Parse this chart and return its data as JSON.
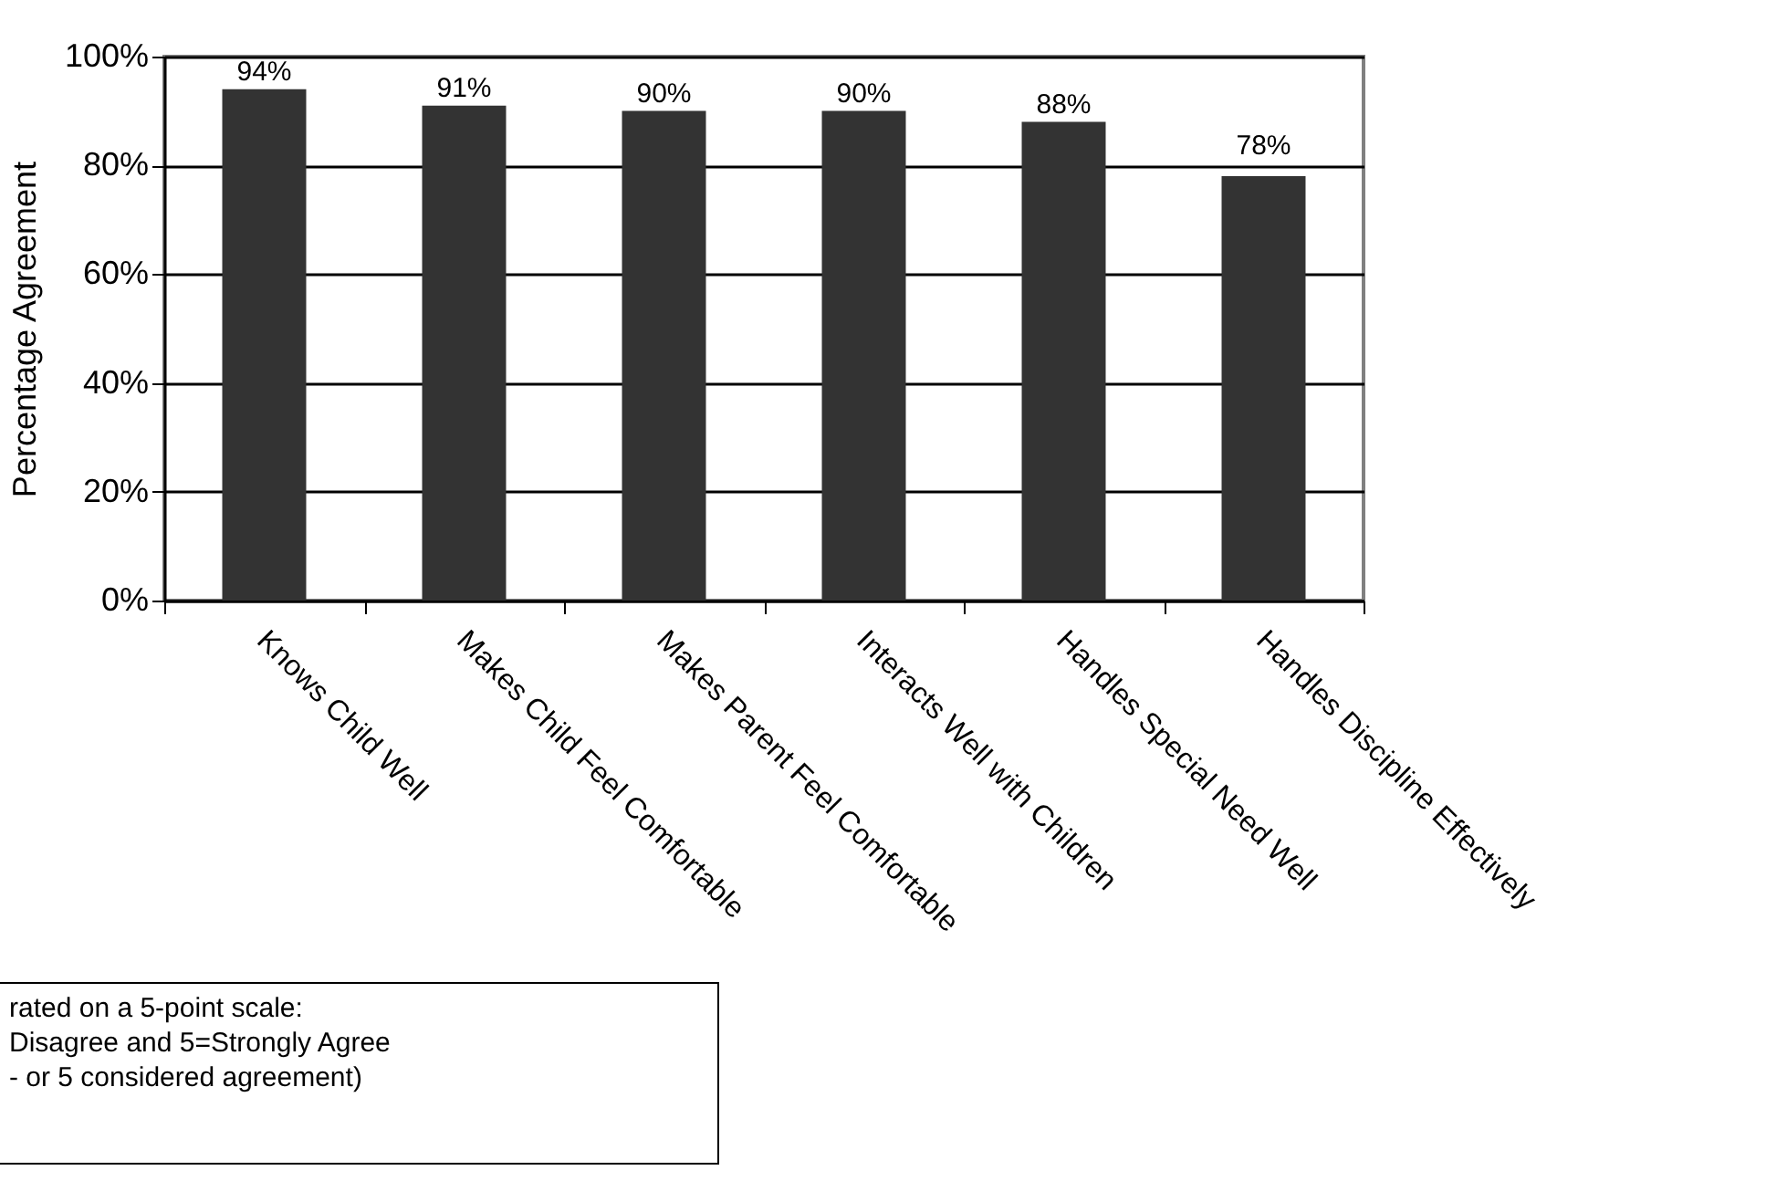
{
  "chart_data": {
    "type": "bar",
    "ylabel": "Percentage Agreement",
    "categories": [
      "Knows Child Well",
      "Makes Child Feel Comfortable",
      "Makes Parent Feel Comfortable",
      "Interacts Well with Children",
      "Handles Special Need Well",
      "Handles Discipline Effectively"
    ],
    "values": [
      94,
      91,
      90,
      90,
      88,
      78
    ],
    "value_labels": [
      "94%",
      "91%",
      "90%",
      "90%",
      "88%",
      "78%"
    ],
    "color": "#333333",
    "ylim": [
      0,
      100
    ],
    "yticks": [
      {
        "value": 0,
        "label": "0%"
      },
      {
        "value": 20,
        "label": "20%"
      },
      {
        "value": 40,
        "label": "40%"
      },
      {
        "value": 60,
        "label": "60%"
      },
      {
        "value": 80,
        "label": "80%"
      },
      {
        "value": 100,
        "label": "100%"
      }
    ],
    "grid": "y",
    "annotations": [
      "rated on a 5-point scale:",
      "Disagree and 5=Strongly Agree",
      "- or 5 considered agreement)"
    ]
  }
}
